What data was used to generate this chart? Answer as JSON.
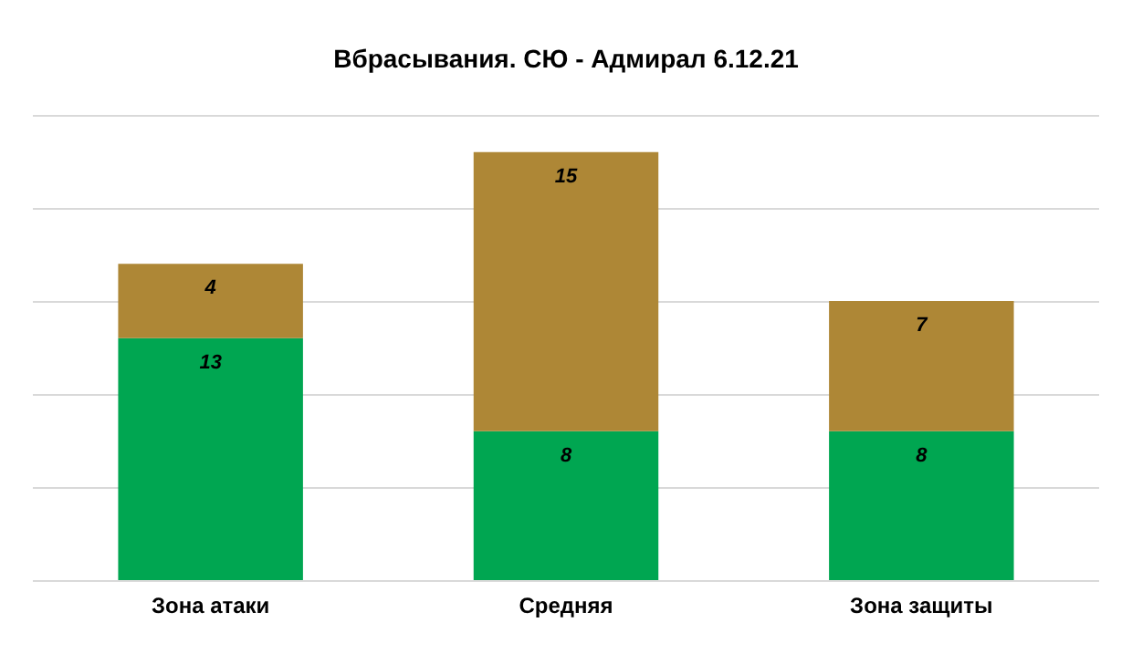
{
  "chart_data": {
    "type": "bar",
    "title": "Вбрасывания. СЮ - Адмирал 6.12.21",
    "categories": [
      "Зона атаки",
      "Средняя",
      "Зона защиты"
    ],
    "stacked": true,
    "data_labels": true,
    "grid": "y",
    "tick_labels": "x",
    "ylim": [
      0,
      25
    ],
    "yticks": [
      {
        "value": 0,
        "label": null
      },
      {
        "value": 5,
        "label": null
      },
      {
        "value": 10,
        "label": null
      },
      {
        "value": 15,
        "label": null
      },
      {
        "value": 20,
        "label": null
      },
      {
        "value": 25,
        "label": null
      }
    ],
    "series": [
      {
        "color": "#00a651",
        "values": [
          13,
          8,
          8
        ]
      },
      {
        "color": "#ae8736",
        "values": [
          4,
          15,
          7
        ]
      }
    ]
  }
}
